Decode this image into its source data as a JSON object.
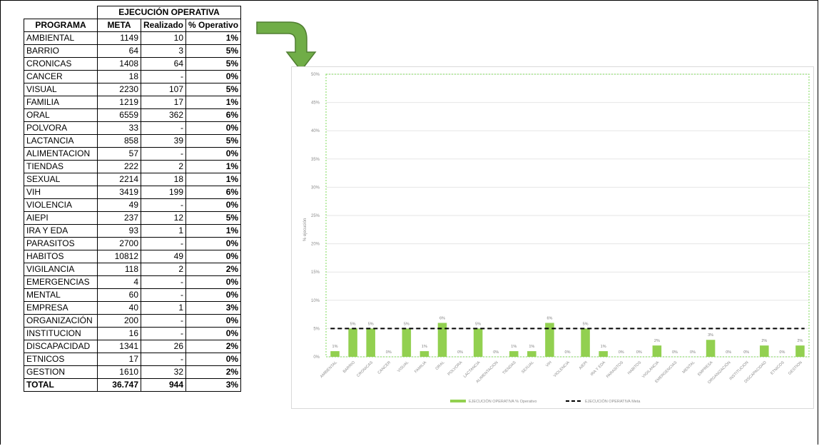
{
  "table": {
    "group_header": "EJECUCIÓN OPERATIVA",
    "columns": [
      "PROGRAMA",
      "META",
      "Realizado",
      "% Operativo"
    ],
    "rows": [
      [
        "AMBIENTAL",
        "1149",
        "10",
        "1%"
      ],
      [
        "BARRIO",
        "64",
        "3",
        "5%"
      ],
      [
        "CRONICAS",
        "1408",
        "64",
        "5%"
      ],
      [
        "CANCER",
        "18",
        "-",
        "0%"
      ],
      [
        "VISUAL",
        "2230",
        "107",
        "5%"
      ],
      [
        "FAMILIA",
        "1219",
        "17",
        "1%"
      ],
      [
        "ORAL",
        "6559",
        "362",
        "6%"
      ],
      [
        "POLVORA",
        "33",
        "-",
        "0%"
      ],
      [
        "LACTANCIA",
        "858",
        "39",
        "5%"
      ],
      [
        "ALIMENTACION",
        "57",
        "-",
        "0%"
      ],
      [
        "TIENDAS",
        "222",
        "2",
        "1%"
      ],
      [
        "SEXUAL",
        "2214",
        "18",
        "1%"
      ],
      [
        "VIH",
        "3419",
        "199",
        "6%"
      ],
      [
        "VIOLENCIA",
        "49",
        "-",
        "0%"
      ],
      [
        "AIEPI",
        "237",
        "12",
        "5%"
      ],
      [
        "IRA Y EDA",
        "93",
        "1",
        "1%"
      ],
      [
        "PARASITOS",
        "2700",
        "-",
        "0%"
      ],
      [
        "HABITOS",
        "10812",
        "49",
        "0%"
      ],
      [
        "VIGILANCIA",
        "118",
        "2",
        "2%"
      ],
      [
        "EMERGENCIAS",
        "4",
        "-",
        "0%"
      ],
      [
        "MENTAL",
        "60",
        "-",
        "0%"
      ],
      [
        "EMPRESA",
        "40",
        "1",
        "3%"
      ],
      [
        "ORGANIZACIÓN",
        "200",
        "-",
        "0%"
      ],
      [
        "INSTITUCION",
        "16",
        "-",
        "0%"
      ],
      [
        "DISCAPACIDAD",
        "1341",
        "26",
        "2%"
      ],
      [
        "ETNICOS",
        "17",
        "-",
        "0%"
      ],
      [
        "GESTION",
        "1610",
        "32",
        "2%"
      ]
    ],
    "total": [
      "TOTAL",
      "36.747",
      "944",
      "3%"
    ]
  },
  "colors": {
    "bar": "#92d050",
    "meta_line": "#000000",
    "arrow_fill": "#70ad47",
    "arrow_stroke": "#507e32",
    "plot_border": "#7ed957",
    "gridline": "#e6e6e6",
    "tick_text": "#8c8c8c"
  },
  "chart_data": {
    "type": "bar",
    "categories": [
      "AMBIENTAL",
      "BARRIO",
      "CRONICAS",
      "CANCER",
      "VISUAL",
      "FAMILIA",
      "ORAL",
      "POLVORA",
      "LACTANCIA",
      "ALIMENTACION",
      "TIENDAS",
      "SEXUAL",
      "VIH",
      "VIOLENCIA",
      "AIEPI",
      "IRA Y EDA",
      "PARASITOS",
      "HABITOS",
      "VIGILANCIA",
      "EMERGENCIAS",
      "MENTAL",
      "EMPRESA",
      "ORGANIZACIÓN",
      "INSTITUCION",
      "DISCAPACIDAD",
      "ETNICOS",
      "GESTION"
    ],
    "series": [
      {
        "name": "EJECUCIÓN OPERATIVA % Operativo",
        "kind": "bar",
        "values": [
          1,
          5,
          5,
          0,
          5,
          1,
          6,
          0,
          5,
          0,
          1,
          1,
          6,
          0,
          5,
          1,
          0,
          0,
          2,
          0,
          0,
          3,
          0,
          0,
          2,
          0,
          2
        ],
        "labels": [
          "1%",
          "5%",
          "5%",
          "0%",
          "5%",
          "1%",
          "6%",
          "0%",
          "5%",
          "0%",
          "1%",
          "1%",
          "6%",
          "0%",
          "5%",
          "1%",
          "0%",
          "0%",
          "2%",
          "0%",
          "0%",
          "3%",
          "0%",
          "0%",
          "2%",
          "0%",
          "2%"
        ]
      },
      {
        "name": "EJECUCIÓN OPERATIVA Meta",
        "kind": "dashed-line",
        "value": 5
      }
    ],
    "ylabel": "% ejecución",
    "ylim": [
      0,
      50
    ],
    "yticks": [
      "0%",
      "5%",
      "10%",
      "15%",
      "20%",
      "25%",
      "30%",
      "35%",
      "40%",
      "45%",
      "50%"
    ],
    "grid": true,
    "legend": "bottom"
  }
}
